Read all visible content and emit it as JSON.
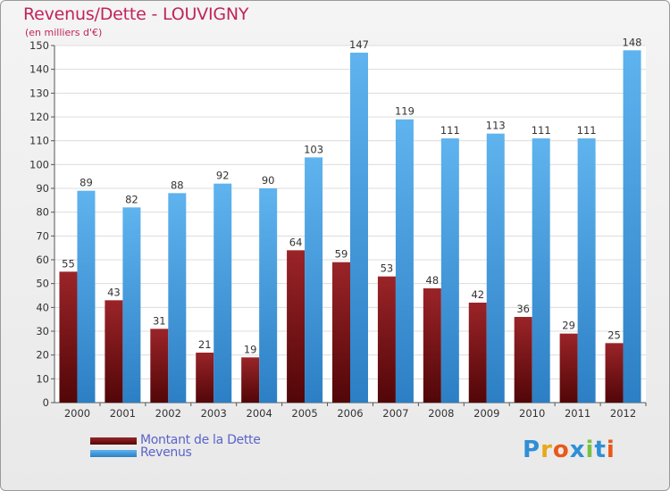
{
  "chart_data": {
    "type": "bar",
    "title": "Revenus/Dette - LOUVIGNY",
    "subtitle": "(en milliers d'€)",
    "categories": [
      "2000",
      "2001",
      "2002",
      "2003",
      "2004",
      "2005",
      "2006",
      "2007",
      "2008",
      "2009",
      "2010",
      "2011",
      "2012"
    ],
    "series": [
      {
        "name": "Montant de la Dette",
        "values": [
          55,
          43,
          31,
          21,
          19,
          64,
          59,
          53,
          48,
          42,
          36,
          29,
          25
        ],
        "color": "#7a1418"
      },
      {
        "name": "Revenus",
        "values": [
          89,
          82,
          88,
          92,
          90,
          103,
          147,
          119,
          111,
          113,
          111,
          111,
          148
        ],
        "color": "#4aa3e3"
      }
    ],
    "ylim": [
      0,
      150
    ],
    "yticks": [
      0,
      10,
      20,
      30,
      40,
      50,
      60,
      70,
      80,
      90,
      100,
      110,
      120,
      130,
      140,
      150
    ],
    "grid": true,
    "legend_position": "bottom-left"
  },
  "logo": {
    "text": "Proxiti",
    "letters": [
      "P",
      "r",
      "o",
      "x",
      "i",
      "t",
      "i"
    ],
    "colors": [
      "#2f8fd6",
      "#e8a81a",
      "#e8591a",
      "#2f8fd6",
      "#7ac143",
      "#2f8fd6",
      "#e8591a"
    ]
  }
}
